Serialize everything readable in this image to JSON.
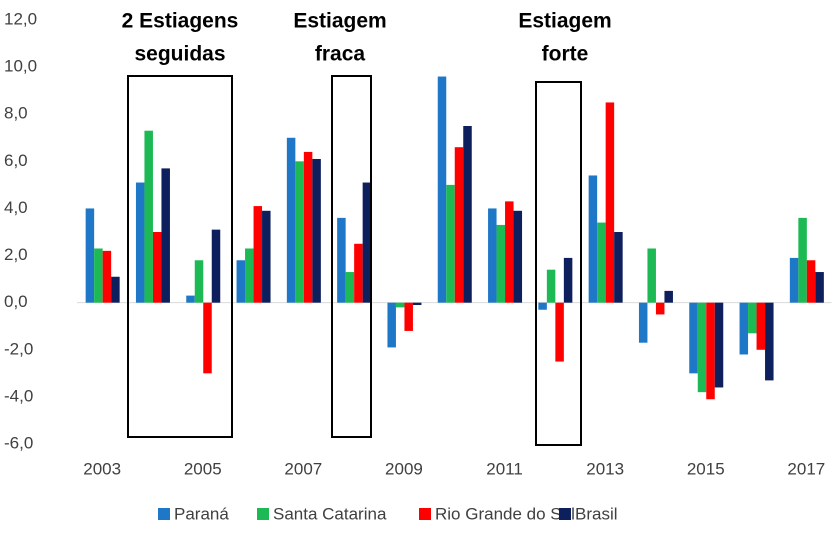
{
  "chart_data": {
    "type": "bar",
    "categories": [
      "2003",
      null,
      "2005",
      null,
      "2007",
      null,
      "2009",
      null,
      "2011",
      null,
      "2013",
      null,
      "2015",
      null,
      "2017"
    ],
    "series": [
      {
        "name": "Paraná",
        "color": "#1f77c8",
        "values": [
          4.0,
          5.1,
          0.3,
          1.8,
          7.0,
          3.6,
          -1.9,
          9.6,
          4.0,
          -0.3,
          5.4,
          -1.7,
          -3.0,
          -2.2,
          1.9
        ]
      },
      {
        "name": "Santa Catarina",
        "color": "#1db954",
        "values": [
          2.3,
          7.3,
          1.8,
          2.3,
          6.0,
          1.3,
          -0.2,
          5.0,
          3.3,
          1.4,
          3.4,
          2.3,
          -3.8,
          -1.3,
          3.6
        ]
      },
      {
        "name": "Rio Grande do Sul",
        "color": "#ff0000",
        "values": [
          2.2,
          3.0,
          -3.0,
          4.1,
          6.4,
          2.5,
          -1.2,
          6.6,
          4.3,
          -2.5,
          8.5,
          -0.5,
          -4.1,
          -2.0,
          1.8
        ]
      },
      {
        "name": "Brasil",
        "color": "#0d1f5c",
        "values": [
          1.1,
          5.7,
          3.1,
          3.9,
          6.1,
          5.1,
          -0.1,
          7.5,
          3.9,
          1.9,
          3.0,
          0.5,
          -3.6,
          -3.3,
          1.3
        ]
      }
    ],
    "ylim": [
      -6,
      12
    ],
    "yticks": [
      {
        "value": -6,
        "label": "-6,0"
      },
      {
        "value": -4,
        "label": "-4,0"
      },
      {
        "value": -2,
        "label": "-2,0"
      },
      {
        "value": 0,
        "label": "0,0"
      },
      {
        "value": 2,
        "label": "2,0"
      },
      {
        "value": 4,
        "label": "4,0"
      },
      {
        "value": 6,
        "label": "6,0"
      },
      {
        "value": 8,
        "label": "8,0"
      },
      {
        "value": 10,
        "label": "10,0"
      },
      {
        "value": 12,
        "label": "12,0"
      }
    ],
    "annotations": [
      [
        "2 Estiagens",
        "seguidas"
      ],
      [
        "Estiagem",
        "fraca"
      ],
      [
        "Estiagem",
        "forte"
      ]
    ],
    "legend": "bottom"
  }
}
